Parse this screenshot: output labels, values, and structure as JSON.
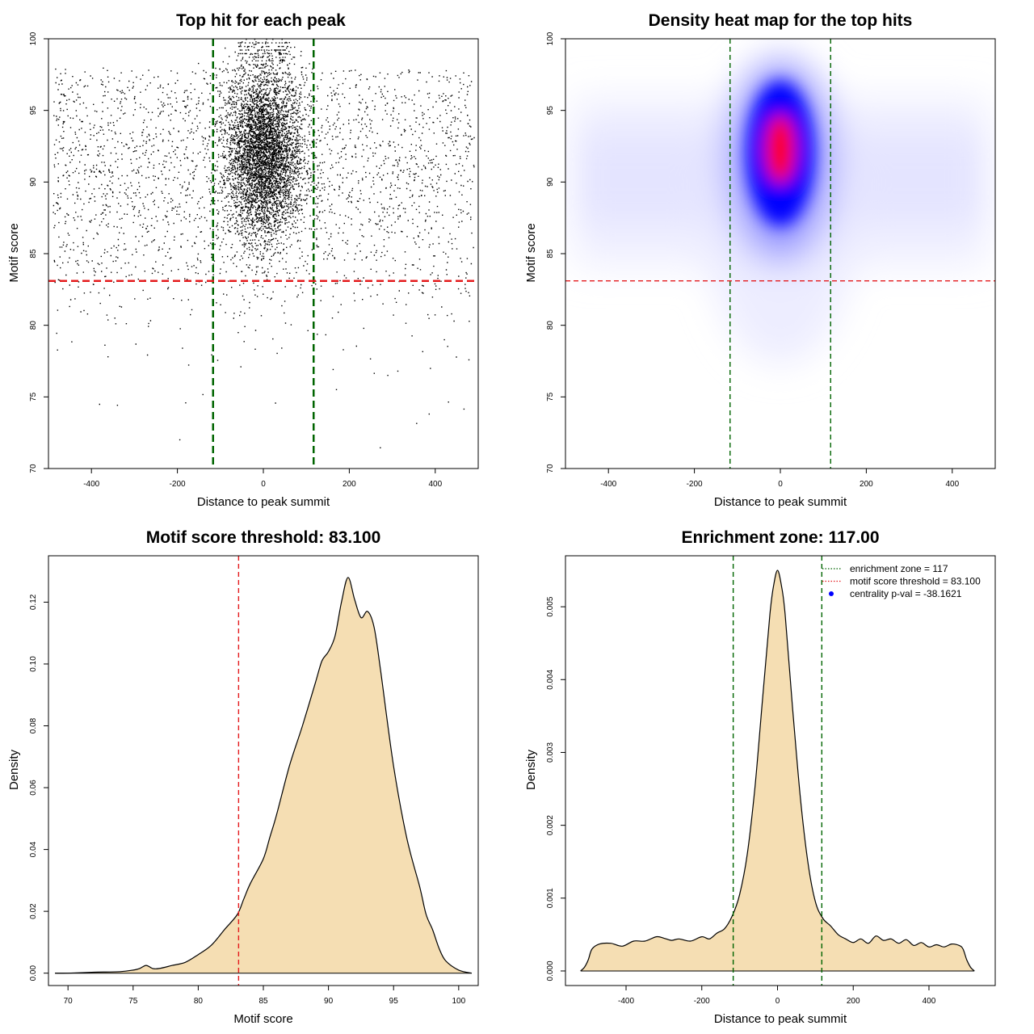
{
  "chart_data": [
    {
      "id": "scatter",
      "type": "scatter",
      "title": "Top hit for each peak",
      "xlabel": "Distance to peak summit",
      "ylabel": "Motif score",
      "xlim": [
        -500,
        500
      ],
      "ylim": [
        70,
        100
      ],
      "xticks": [
        -400,
        -200,
        0,
        200,
        400
      ],
      "yticks": [
        70,
        75,
        80,
        85,
        90,
        95,
        100
      ],
      "vlines": [
        -117,
        117
      ],
      "hline": 83.1,
      "point_color": "#000000",
      "point_count_approx": 16000,
      "center_cluster": {
        "x_center": 0,
        "x_sd": 45,
        "y_mean": 92,
        "y_sd": 3,
        "y_max": 100
      },
      "background": {
        "x_range": [
          -490,
          490
        ],
        "y_mean": 90.5,
        "y_sd": 4.5,
        "y_max": 98
      }
    },
    {
      "id": "heatmap",
      "type": "heatmap",
      "title": "Density heat map for the top hits",
      "xlabel": "Distance to peak summit",
      "ylabel": "Motif score",
      "xlim": [
        -500,
        500
      ],
      "ylim": [
        70,
        100
      ],
      "xticks": [
        -400,
        -200,
        0,
        200,
        400
      ],
      "yticks": [
        70,
        75,
        80,
        85,
        90,
        95,
        100
      ],
      "vlines": [
        -117,
        117
      ],
      "hline": 83.1,
      "colors": [
        "#ffffff",
        "#0000ff",
        "#ff0000"
      ],
      "hotspot": {
        "x": 0,
        "y": 92.5
      }
    },
    {
      "id": "score_density",
      "type": "area",
      "title": "Motif score threshold: 83.100",
      "xlabel": "Motif score",
      "ylabel": "Density",
      "xlim": [
        68.5,
        101.5
      ],
      "ylim": [
        -0.004,
        0.135
      ],
      "xticks": [
        70,
        75,
        80,
        85,
        90,
        95,
        100
      ],
      "yticks": [
        0.0,
        0.02,
        0.04,
        0.06,
        0.08,
        0.1,
        0.12
      ],
      "ytick_labels": [
        "0.00",
        "0.02",
        "0.04",
        "0.06",
        "0.08",
        "0.10",
        "0.12"
      ],
      "vline": 83.1,
      "fill": "#f5deb3",
      "x": [
        69,
        70,
        72,
        74,
        75,
        75.5,
        76,
        76.5,
        77,
        78,
        79,
        80,
        81,
        82,
        83,
        83.5,
        84,
        85,
        85.5,
        86,
        87,
        88,
        89,
        89.5,
        90,
        90.5,
        91,
        91.5,
        92,
        92.5,
        93,
        93.5,
        94,
        95,
        96,
        97,
        97.5,
        98,
        98.5,
        99,
        100,
        101
      ],
      "y": [
        0.0,
        0.0,
        0.0003,
        0.0005,
        0.001,
        0.0015,
        0.0025,
        0.0015,
        0.0015,
        0.0025,
        0.0035,
        0.006,
        0.009,
        0.014,
        0.019,
        0.024,
        0.029,
        0.037,
        0.044,
        0.051,
        0.067,
        0.08,
        0.094,
        0.101,
        0.104,
        0.109,
        0.12,
        0.128,
        0.121,
        0.115,
        0.117,
        0.112,
        0.098,
        0.067,
        0.044,
        0.028,
        0.019,
        0.014,
        0.008,
        0.004,
        0.001,
        0.0
      ]
    },
    {
      "id": "distance_density",
      "type": "area",
      "title": "Enrichment zone: 117.00",
      "xlabel": "Distance to peak summit",
      "ylabel": "Density",
      "xlim": [
        -560,
        575
      ],
      "ylim": [
        -0.0002,
        0.0057
      ],
      "xticks": [
        -400,
        -200,
        0,
        200,
        400
      ],
      "yticks": [
        0.0,
        0.001,
        0.002,
        0.003,
        0.004,
        0.005
      ],
      "ytick_labels": [
        "0.000",
        "0.001",
        "0.002",
        "0.003",
        "0.004",
        "0.005"
      ],
      "vlines": [
        -117,
        117
      ],
      "fill": "#f5deb3",
      "x": [
        -520,
        -510,
        -500,
        -490,
        -470,
        -440,
        -410,
        -380,
        -350,
        -320,
        -300,
        -280,
        -260,
        -230,
        -200,
        -180,
        -160,
        -140,
        -120,
        -100,
        -80,
        -60,
        -40,
        -20,
        -10,
        0,
        10,
        20,
        40,
        60,
        80,
        100,
        120,
        140,
        160,
        180,
        200,
        220,
        240,
        260,
        280,
        300,
        320,
        340,
        360,
        380,
        400,
        420,
        440,
        460,
        480,
        490,
        500,
        510,
        520
      ],
      "y": [
        0.0,
        5e-05,
        0.00015,
        0.0003,
        0.00037,
        0.00038,
        0.00034,
        0.00041,
        0.00041,
        0.00047,
        0.00045,
        0.00042,
        0.00044,
        0.00041,
        0.00047,
        0.00044,
        0.00052,
        0.00058,
        0.00075,
        0.00105,
        0.0016,
        0.0025,
        0.0037,
        0.0049,
        0.0053,
        0.0055,
        0.0053,
        0.0049,
        0.0036,
        0.0024,
        0.0015,
        0.00095,
        0.00072,
        0.00062,
        0.0005,
        0.00044,
        0.00039,
        0.00044,
        0.00038,
        0.00048,
        0.00042,
        0.00044,
        0.00038,
        0.00043,
        0.00035,
        0.00039,
        0.00033,
        0.00036,
        0.00033,
        0.00037,
        0.00035,
        0.0003,
        0.00015,
        5e-05,
        0.0
      ],
      "legend": {
        "position": "top-right",
        "items": [
          {
            "label": "enrichment zone = 117",
            "color": "#006400",
            "style": "dotted"
          },
          {
            "label": "motif score threshold = 83.100",
            "color": "#e41a1c",
            "style": "dotted"
          },
          {
            "label": "centrality p-val = -38.1621",
            "color": "#0000ff",
            "style": "point"
          }
        ]
      }
    }
  ]
}
